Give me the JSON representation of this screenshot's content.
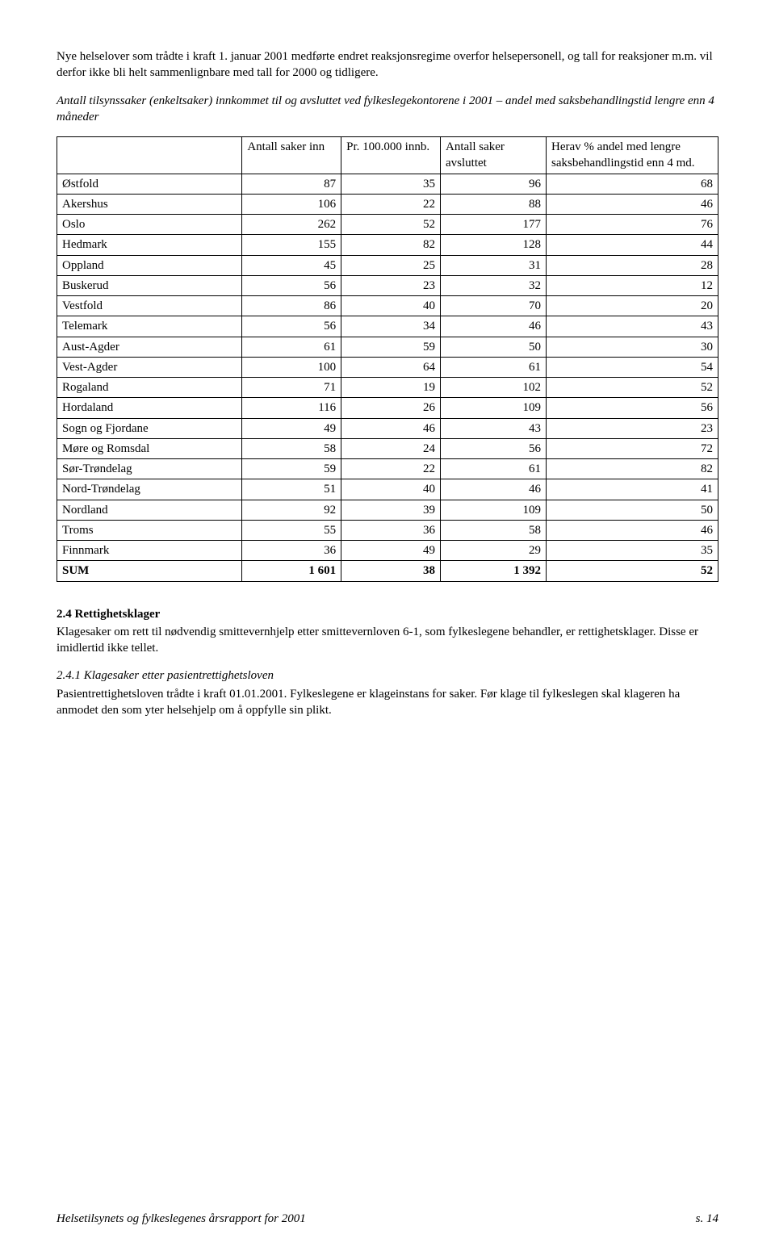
{
  "paragraph1": "Nye helselover som trådte i kraft 1. januar 2001 medførte endret reaksjonsregime overfor helsepersonell, og tall for reaksjoner m.m. vil derfor ikke bli helt sammenlignbare med tall for 2000 og tidligere.",
  "paragraph2": "Antall tilsynssaker (enkeltsaker) innkommet til og avsluttet ved fylkeslegekontorene i 2001 – andel med saksbehandlingstid lengre enn 4 måneder",
  "table": {
    "headers": {
      "col1": "Antall saker inn",
      "col2": "Pr. 100.000 innb.",
      "col3": "Antall saker avsluttet",
      "col4": "Herav % andel med lengre saksbehandlingstid enn 4 md."
    },
    "rows": [
      {
        "name": "Østfold",
        "c1": "87",
        "c2": "35",
        "c3": "96",
        "c4": "68"
      },
      {
        "name": "Akershus",
        "c1": "106",
        "c2": "22",
        "c3": "88",
        "c4": "46"
      },
      {
        "name": "Oslo",
        "c1": "262",
        "c2": "52",
        "c3": "177",
        "c4": "76"
      },
      {
        "name": "Hedmark",
        "c1": "155",
        "c2": "82",
        "c3": "128",
        "c4": "44"
      },
      {
        "name": "Oppland",
        "c1": "45",
        "c2": "25",
        "c3": "31",
        "c4": "28"
      },
      {
        "name": "Buskerud",
        "c1": "56",
        "c2": "23",
        "c3": "32",
        "c4": "12"
      },
      {
        "name": "Vestfold",
        "c1": "86",
        "c2": "40",
        "c3": "70",
        "c4": "20"
      },
      {
        "name": "Telemark",
        "c1": "56",
        "c2": "34",
        "c3": "46",
        "c4": "43"
      },
      {
        "name": "Aust-Agder",
        "c1": "61",
        "c2": "59",
        "c3": "50",
        "c4": "30"
      },
      {
        "name": "Vest-Agder",
        "c1": "100",
        "c2": "64",
        "c3": "61",
        "c4": "54"
      },
      {
        "name": "Rogaland",
        "c1": "71",
        "c2": "19",
        "c3": "102",
        "c4": "52"
      },
      {
        "name": "Hordaland",
        "c1": "116",
        "c2": "26",
        "c3": "109",
        "c4": "56"
      },
      {
        "name": "Sogn og Fjordane",
        "c1": "49",
        "c2": "46",
        "c3": "43",
        "c4": "23"
      },
      {
        "name": "Møre og Romsdal",
        "c1": "58",
        "c2": "24",
        "c3": "56",
        "c4": "72"
      },
      {
        "name": "Sør-Trøndelag",
        "c1": "59",
        "c2": "22",
        "c3": "61",
        "c4": "82"
      },
      {
        "name": "Nord-Trøndelag",
        "c1": "51",
        "c2": "40",
        "c3": "46",
        "c4": "41"
      },
      {
        "name": "Nordland",
        "c1": "92",
        "c2": "39",
        "c3": "109",
        "c4": "50"
      },
      {
        "name": "Troms",
        "c1": "55",
        "c2": "36",
        "c3": "58",
        "c4": "46"
      },
      {
        "name": "Finnmark",
        "c1": "36",
        "c2": "49",
        "c3": "29",
        "c4": "35"
      }
    ],
    "sum": {
      "name": "SUM",
      "c1": "1 601",
      "c2": "38",
      "c3": "1 392",
      "c4": "52"
    }
  },
  "section": {
    "title": "2.4  Rettighetsklager",
    "body": "Klagesaker om rett til nødvendig smittevernhjelp etter smittevernloven 6-1, som fylkeslegene behandler, er rettighetsklager. Disse er imidlertid ikke tellet."
  },
  "subsection": {
    "title": "2.4.1  Klagesaker etter pasientrettighetsloven",
    "body": "Pasientrettighetsloven trådte i kraft 01.01.2001. Fylkeslegene er klageinstans for saker. Før klage til fylkeslegen skal klageren ha anmodet den som yter helsehjelp om å oppfylle sin plikt."
  },
  "footer": {
    "left": "Helsetilsynets og fylkeslegenes årsrapport for 2001",
    "right": "s. 14"
  },
  "col_widths": [
    "28%",
    "15%",
    "15%",
    "16%",
    "26%"
  ]
}
